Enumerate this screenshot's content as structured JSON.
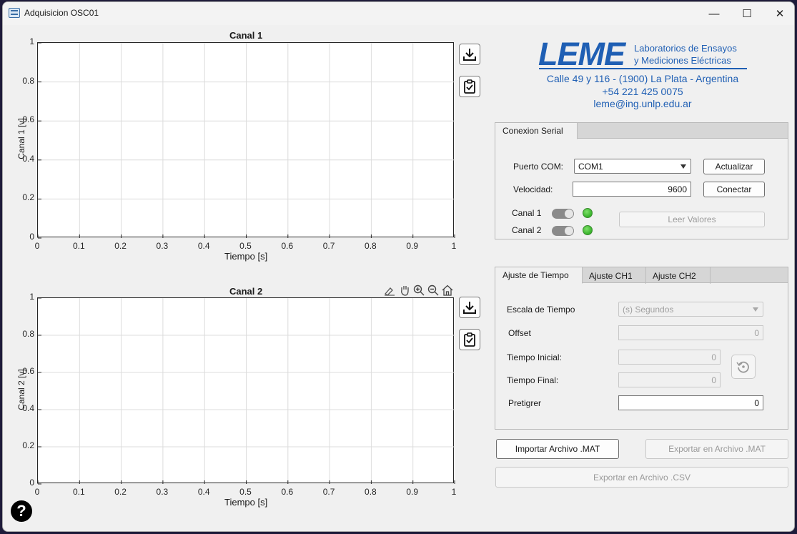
{
  "window": {
    "title": "Adquisicion OSC01",
    "minimize": "—",
    "maximize": "☐",
    "close": "✕"
  },
  "plot1": {
    "title": "Canal 1",
    "ylabel": "Canal 1  [v]",
    "xlabel": "Tiempo [s]",
    "xticks": [
      "0",
      "0.1",
      "0.2",
      "0.3",
      "0.4",
      "0.5",
      "0.6",
      "0.7",
      "0.8",
      "0.9",
      "1"
    ],
    "yticks": [
      "0",
      "0.2",
      "0.4",
      "0.6",
      "0.8",
      "1"
    ],
    "xlim": [
      0,
      1
    ],
    "ylim": [
      0,
      1
    ],
    "grid": true
  },
  "plot2": {
    "title": "Canal 2",
    "ylabel": "Canal 2  [v]",
    "xlabel": "Tiempo [s]",
    "xticks": [
      "0",
      "0.1",
      "0.2",
      "0.3",
      "0.4",
      "0.5",
      "0.6",
      "0.7",
      "0.8",
      "0.9",
      "1"
    ],
    "yticks": [
      "0",
      "0.2",
      "0.4",
      "0.6",
      "0.8",
      "1"
    ],
    "xlim": [
      0,
      1
    ],
    "ylim": [
      0,
      1
    ],
    "grid": true
  },
  "plot_toolbar": [
    "brush-icon",
    "pan-hand-icon",
    "zoom-in-icon",
    "zoom-out-icon",
    "home-icon"
  ],
  "logo": {
    "brand": "LEME",
    "line1": "Laboratorios de Ensayos",
    "line2": "y  Mediciones  Eléctricas",
    "address": "Calle 49 y 116 - (1900) La Plata - Argentina",
    "phone": "+54 221 425 0075",
    "email": "leme@ing.unlp.edu.ar",
    "color": "#1f5fb4"
  },
  "serial": {
    "tab": "Conexion Serial",
    "port_label": "Puerto COM:",
    "port_value": "COM1",
    "refresh_button": "Actualizar",
    "speed_label": "Velocidad:",
    "speed_value": "9600",
    "connect_button": "Conectar",
    "ch1_label": "Canal 1",
    "ch2_label": "Canal 2",
    "read_button": "Leer Valores"
  },
  "settings": {
    "tabs": [
      "Ajuste de Tiempo",
      "Ajuste CH1",
      "Ajuste CH2"
    ],
    "scale_label": "Escala de Tiempo",
    "scale_value": "(s) Segundos",
    "offset_label": "Offset",
    "offset_value": "0",
    "start_label": "Tiempo Inicial:",
    "start_value": "0",
    "end_label": "Tiempo Final:",
    "end_value": "0",
    "pretrigger_label": "Pretigrer",
    "pretrigger_value": "0"
  },
  "files": {
    "import_mat": "Importar Archivo .MAT",
    "export_mat": "Exportar en Archivo .MAT",
    "export_csv": "Exportar en Archivo .CSV"
  },
  "help": "?"
}
